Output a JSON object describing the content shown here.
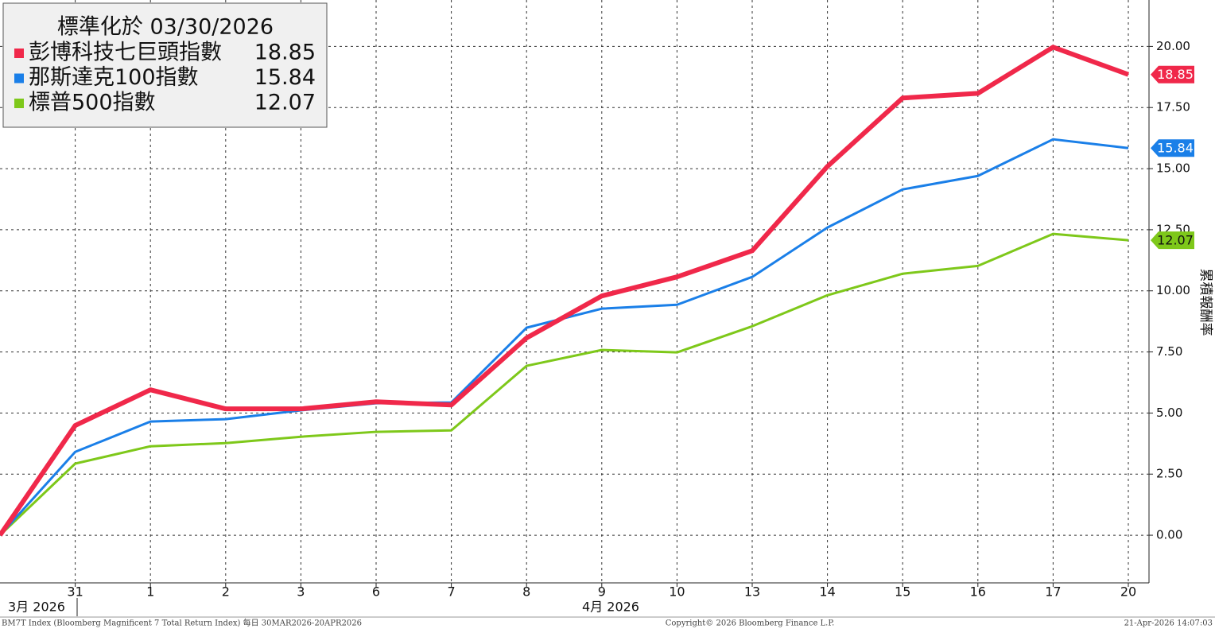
{
  "chart_data": {
    "type": "line",
    "legend_title": "標準化於 03/30/2026",
    "y_label": "累積報酬率",
    "categories": [
      null,
      "31",
      "1",
      "2",
      "3",
      "6",
      "7",
      "8",
      "9",
      "10",
      "13",
      "14",
      "15",
      "16",
      "17",
      "20"
    ],
    "x_group_labels": [
      "3月 2026",
      "4月 2026"
    ],
    "series": [
      {
        "name": "彭博科技七巨頭指數",
        "color": "#f0284a",
        "values": [
          0,
          4.49,
          5.95,
          5.17,
          5.17,
          5.46,
          5.33,
          8.07,
          9.79,
          10.57,
          11.64,
          15.09,
          17.89,
          18.08,
          19.97,
          18.85
        ]
      },
      {
        "name": "那斯達克100指數",
        "color": "#1a7fe8",
        "values": [
          0,
          3.41,
          4.65,
          4.75,
          5.11,
          5.4,
          5.43,
          8.49,
          9.27,
          9.43,
          10.57,
          12.59,
          14.15,
          14.7,
          16.2,
          15.84
        ]
      },
      {
        "name": "標普500指數",
        "color": "#7ec81a",
        "values": [
          0,
          2.93,
          3.64,
          3.77,
          4.03,
          4.23,
          4.29,
          6.93,
          7.58,
          7.48,
          8.55,
          9.82,
          10.7,
          11.02,
          12.33,
          12.07
        ]
      }
    ],
    "ylim": [
      -1.95,
      21.9
    ],
    "yticks": [
      {
        "value": 0,
        "label": "0.00"
      },
      {
        "value": 2.5,
        "label": "2.50"
      },
      {
        "value": 5,
        "label": "5.00"
      },
      {
        "value": 7.5,
        "label": "7.50"
      },
      {
        "value": 10,
        "label": "10.00"
      },
      {
        "value": 12.5,
        "label": "12.50"
      },
      {
        "value": 15,
        "label": "15.00"
      },
      {
        "value": 17.5,
        "label": "17.50"
      },
      {
        "value": 20,
        "label": "20.00"
      }
    ],
    "grid": true,
    "legend_position": "top-left",
    "footer": {
      "left": "BM7T Index (Bloomberg Magnificent 7 Total Return Index) 每日 30MAR2026-20APR2026",
      "center": "Copyright© 2026 Bloomberg Finance L.P.",
      "right": "21-Apr-2026 14:07:03"
    }
  }
}
